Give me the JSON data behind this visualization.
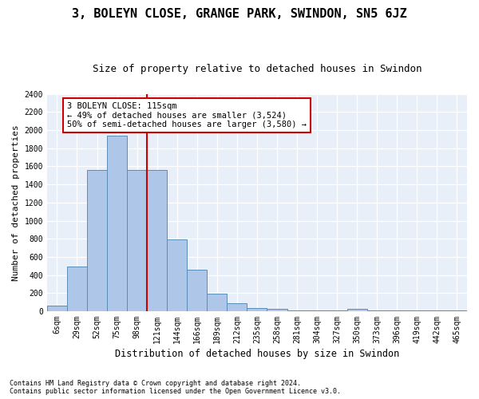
{
  "title": "3, BOLEYN CLOSE, GRANGE PARK, SWINDON, SN5 6JZ",
  "subtitle": "Size of property relative to detached houses in Swindon",
  "xlabel": "Distribution of detached houses by size in Swindon",
  "ylabel": "Number of detached properties",
  "footnote1": "Contains HM Land Registry data © Crown copyright and database right 2024.",
  "footnote2": "Contains public sector information licensed under the Open Government Licence v3.0.",
  "bar_labels": [
    "6sqm",
    "29sqm",
    "52sqm",
    "75sqm",
    "98sqm",
    "121sqm",
    "144sqm",
    "166sqm",
    "189sqm",
    "212sqm",
    "235sqm",
    "258sqm",
    "281sqm",
    "304sqm",
    "327sqm",
    "350sqm",
    "373sqm",
    "396sqm",
    "419sqm",
    "442sqm",
    "465sqm"
  ],
  "bar_values": [
    60,
    490,
    1560,
    1940,
    1560,
    1560,
    790,
    460,
    195,
    90,
    35,
    27,
    5,
    5,
    5,
    22,
    5,
    5,
    5,
    5,
    5
  ],
  "bar_color": "#aec6e8",
  "bar_edge_color": "#5b8db8",
  "background_color": "#e8eff8",
  "grid_color": "#ffffff",
  "vline_x_index": 5,
  "vline_color": "#cc0000",
  "annotation_text": "3 BOLEYN CLOSE: 115sqm\n← 49% of detached houses are smaller (3,524)\n50% of semi-detached houses are larger (3,580) →",
  "annotation_box_color": "#ffffff",
  "annotation_border_color": "#cc0000",
  "ylim": [
    0,
    2400
  ],
  "yticks": [
    0,
    200,
    400,
    600,
    800,
    1000,
    1200,
    1400,
    1600,
    1800,
    2000,
    2200,
    2400
  ],
  "title_fontsize": 11,
  "subtitle_fontsize": 9,
  "axis_label_fontsize": 8,
  "tick_fontsize": 7,
  "annotation_fontsize": 7.5
}
